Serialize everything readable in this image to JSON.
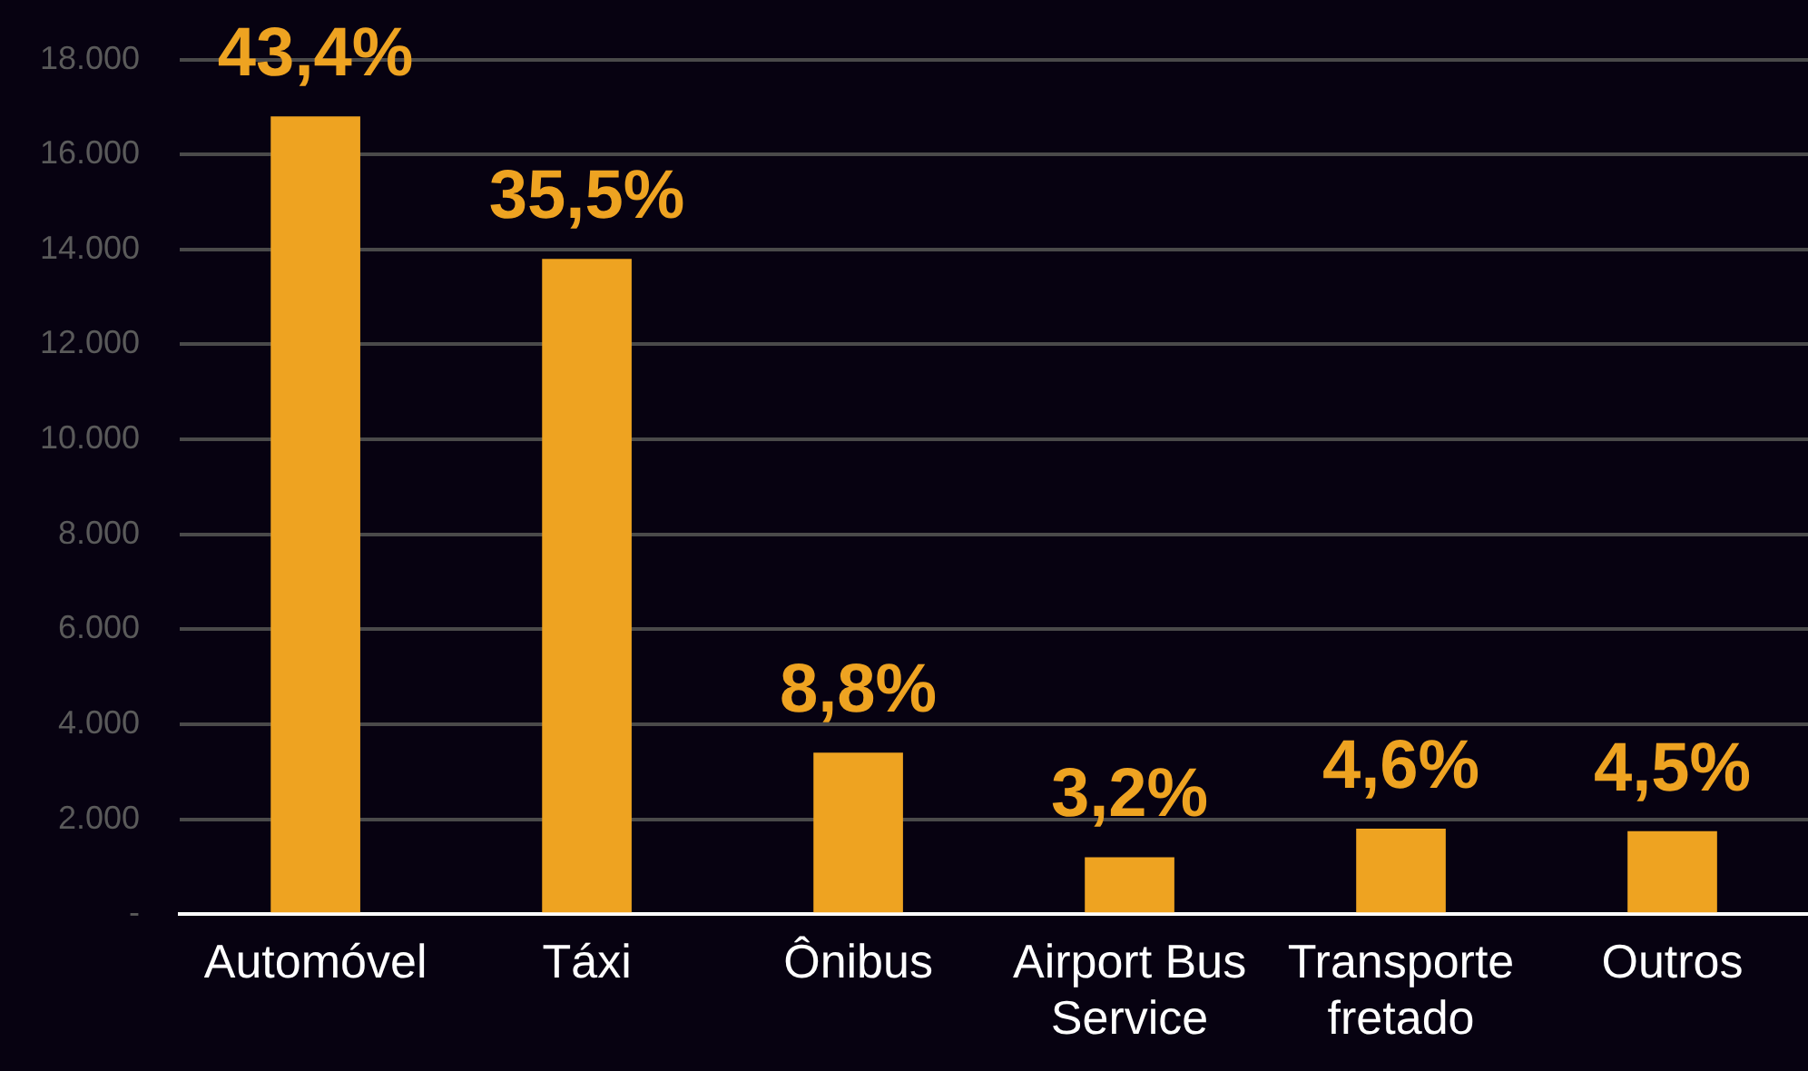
{
  "chart_data": {
    "type": "bar",
    "categories": [
      "Automóvel",
      "Táxi",
      "Ônibus",
      "Airport Bus Service",
      "Transporte fretado",
      "Outros"
    ],
    "values": [
      16800,
      13800,
      3400,
      1200,
      1800,
      1750
    ],
    "annotations": [
      {
        "text": "43,4%",
        "x": "Automóvel",
        "y": 16800
      },
      {
        "text": "35,5%",
        "x": "Táxi",
        "y": 13800
      },
      {
        "text": "8,8%",
        "x": "Ônibus",
        "y": 3400
      },
      {
        "text": "3,2%",
        "x": "Airport Bus Service",
        "y": 1200
      },
      {
        "text": "4,6%",
        "x": "Transporte fretado",
        "y": 1800
      },
      {
        "text": "4,5%",
        "x": "Outros",
        "y": 1750
      }
    ],
    "color": "#eea321",
    "ylim": [
      0,
      18000
    ],
    "yticks": [
      {
        "value": 0,
        "label": "-"
      },
      {
        "value": 2000,
        "label": "2.000"
      },
      {
        "value": 4000,
        "label": "4.000"
      },
      {
        "value": 6000,
        "label": "6.000"
      },
      {
        "value": 8000,
        "label": "8.000"
      },
      {
        "value": 10000,
        "label": "10.000"
      },
      {
        "value": 12000,
        "label": "12.000"
      },
      {
        "value": 14000,
        "label": "14.000"
      },
      {
        "value": 16000,
        "label": "16.000"
      },
      {
        "value": 18000,
        "label": "18.000"
      }
    ],
    "grid": "y",
    "legend": false
  }
}
